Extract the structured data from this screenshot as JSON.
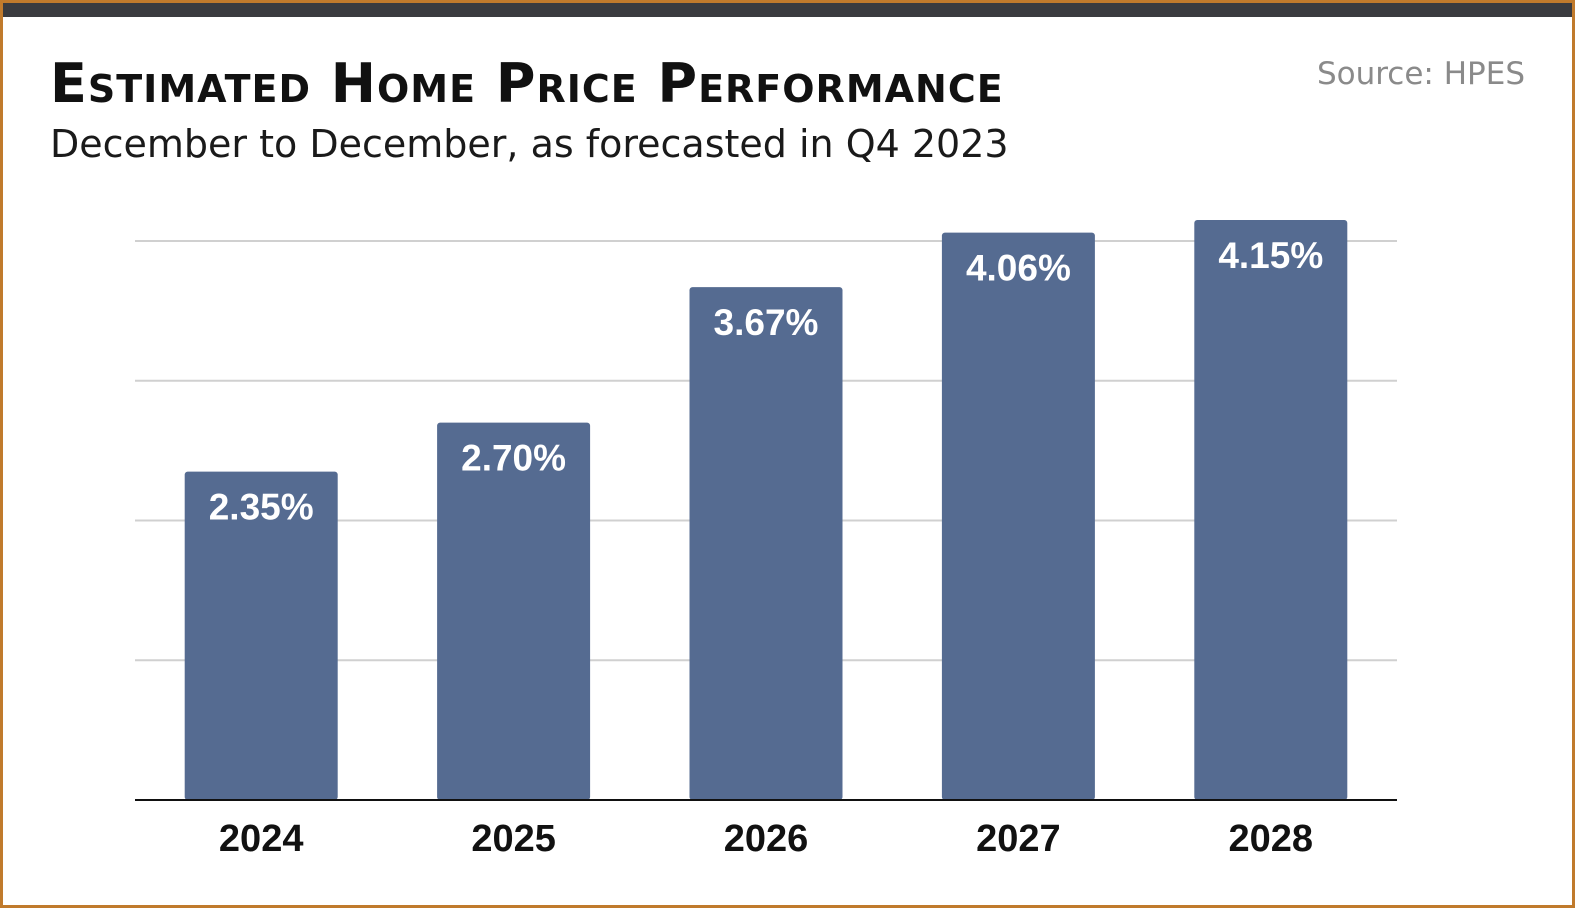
{
  "header": {
    "title": "Estimated Home Price Performance",
    "subtitle": "December to December, as forecasted in Q4 2023",
    "source": "Source: HPES"
  },
  "colors": {
    "bar": "#556b91",
    "frame": "#c07a2c",
    "topbar": "#3a3b3f",
    "grid": "#d0d0d0",
    "axis": "#111111"
  },
  "chart_data": {
    "type": "bar",
    "categories": [
      "2024",
      "2025",
      "2026",
      "2027",
      "2028"
    ],
    "values": [
      2.35,
      2.7,
      3.67,
      4.06,
      4.15
    ],
    "data_labels": [
      "2.35%",
      "2.70%",
      "3.67%",
      "4.06%",
      "4.15%"
    ],
    "title": "Estimated Home Price Performance",
    "subtitle": "December to December, as forecasted in Q4 2023",
    "xlabel": "",
    "ylabel": "",
    "ylim": [
      0,
      4
    ],
    "grid": true,
    "legend": "none"
  }
}
